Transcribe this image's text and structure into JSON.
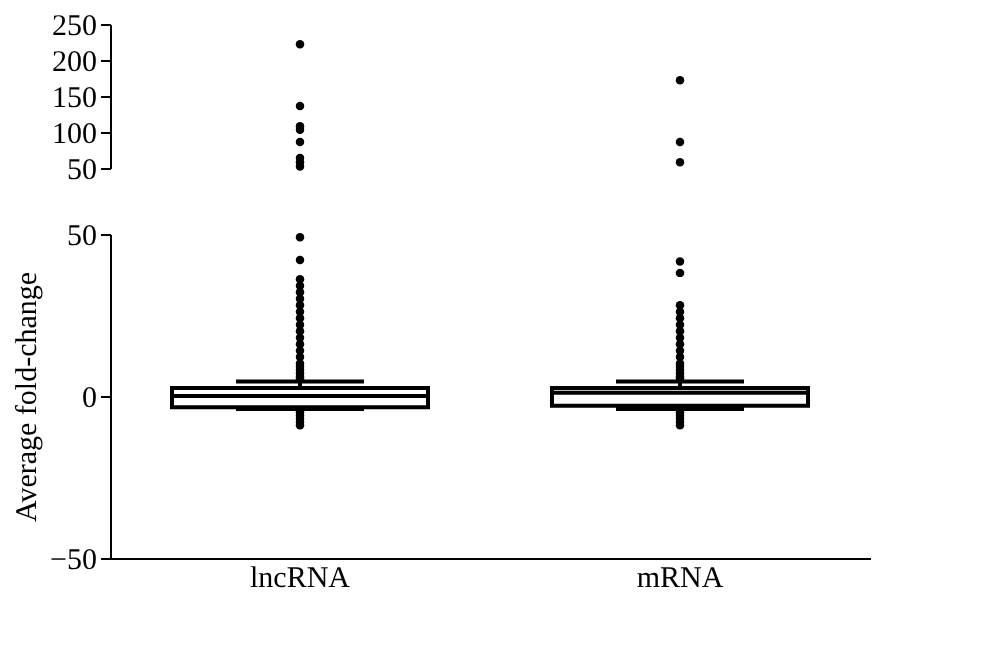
{
  "chart_data": [
    {
      "type": "scatter",
      "categories": [
        "lncRNA",
        "mRNA"
      ],
      "ylim": [
        50,
        250
      ],
      "yticks": [
        50,
        100,
        150,
        200,
        250
      ],
      "tick_labels": "y",
      "grid": false,
      "marker": "circle",
      "series": [
        {
          "color": "#000000",
          "x": [
            "lncRNA",
            "lncRNA",
            "lncRNA",
            "lncRNA",
            "lncRNA",
            "lncRNA",
            "lncRNA",
            "lncRNA",
            "mRNA",
            "mRNA",
            "mRNA"
          ],
          "values": [
            222,
            136,
            108,
            103,
            86,
            64,
            58,
            52,
            172,
            86,
            58
          ]
        }
      ]
    },
    {
      "type": "box",
      "categories": [
        "lncRNA",
        "mRNA"
      ],
      "ylim": [
        -50,
        50
      ],
      "yticks": [
        -50,
        0,
        50
      ],
      "ylabel": "Average fold-change",
      "grid": false,
      "color": "#000000",
      "boxes": [
        {
          "low": -4,
          "q1": -3.5,
          "median": 0,
          "q3": 2.5,
          "high": 4.5,
          "outliers": [
            49,
            42,
            36,
            34,
            32,
            30,
            28,
            26,
            24,
            22,
            20,
            18,
            16,
            14,
            12,
            10,
            9,
            8,
            7,
            6,
            5.5,
            -5,
            -6,
            -7,
            -8,
            -9
          ]
        },
        {
          "low": -4,
          "q1": -3,
          "median": 1,
          "q3": 2.5,
          "high": 4.5,
          "outliers": [
            41.5,
            38,
            28,
            26,
            24,
            22,
            20,
            18,
            16,
            14,
            12,
            10,
            9,
            8,
            7,
            6,
            5.5,
            -5,
            -6,
            -7,
            -8,
            -9
          ]
        }
      ]
    }
  ]
}
